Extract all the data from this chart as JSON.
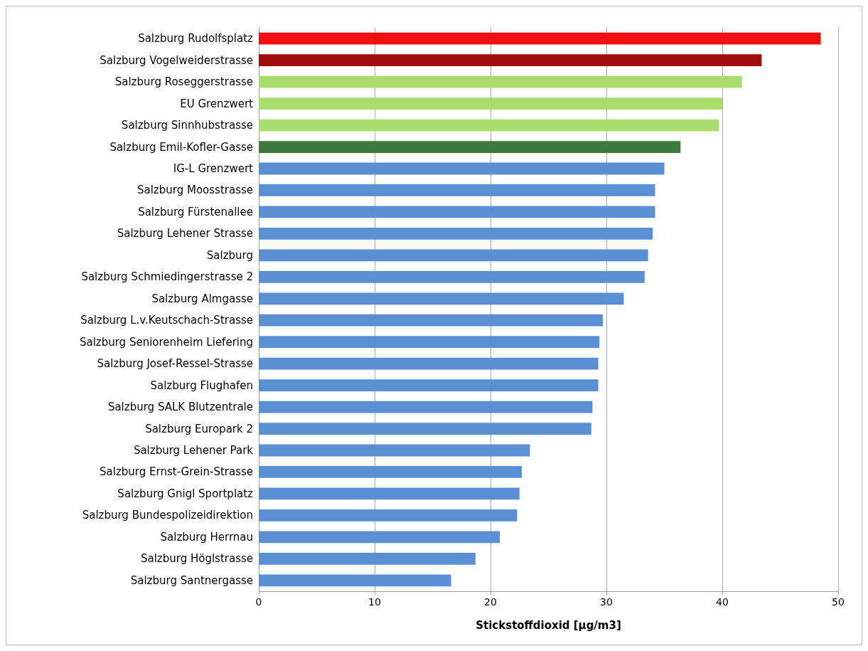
{
  "chart_data": {
    "type": "bar",
    "orientation": "horizontal",
    "xlabel": "Stickstoffdioxid [µg/m3]",
    "categories": [
      "Salzburg Rudolfsplatz",
      "Salzburg Vogelweiderstrasse",
      "Salzburg Roseggerstrasse",
      "EU Grenzwert",
      "Salzburg Sinnhubstrasse",
      "Salzburg Emil-Kofler-Gasse",
      "IG-L Grenzwert",
      "Salzburg Moosstrasse",
      "Salzburg Fürstenallee",
      "Salzburg Lehener Strasse",
      "Salzburg",
      "Salzburg Schmiedingerstrasse 2",
      "Salzburg Almgasse",
      "Salzburg L.v.Keutschach-Strasse",
      "Salzburg Seniorenheim Liefering",
      "Salzburg Josef-Ressel-Strasse",
      "Salzburg Flughafen",
      "Salzburg SALK Blutzentrale",
      "Salzburg Europark 2",
      "Salzburg Lehener Park",
      "Salzburg Ernst-Grein-Strasse",
      "Salzburg Gnigl Sportplatz",
      "Salzburg Bundespolizeidirektion",
      "Salzburg Herrnau",
      "Salzburg Höglstrasse",
      "Salzburg Santnergasse"
    ],
    "values": [
      48.5,
      43.4,
      41.7,
      40.0,
      39.7,
      36.4,
      35.0,
      34.2,
      34.2,
      34.0,
      33.6,
      33.3,
      31.5,
      29.7,
      29.4,
      29.3,
      29.3,
      28.8,
      28.7,
      23.4,
      22.7,
      22.5,
      22.3,
      20.8,
      18.7,
      16.6
    ],
    "colors": [
      "#f01010",
      "#a00d0d",
      "#a8dc6c",
      "#a8dc6c",
      "#a8dc6c",
      "#3b7a3b",
      "#5b8fd4",
      "#5b8fd4",
      "#5b8fd4",
      "#5b8fd4",
      "#5b8fd4",
      "#5b8fd4",
      "#5b8fd4",
      "#5b8fd4",
      "#5b8fd4",
      "#5b8fd4",
      "#5b8fd4",
      "#5b8fd4",
      "#5b8fd4",
      "#5b8fd4",
      "#5b8fd4",
      "#5b8fd4",
      "#5b8fd4",
      "#5b8fd4",
      "#5b8fd4",
      "#5b8fd4"
    ],
    "xlim": [
      0,
      50
    ],
    "xticks": [
      0,
      10,
      20,
      30,
      40,
      50
    ],
    "grid": "x"
  }
}
